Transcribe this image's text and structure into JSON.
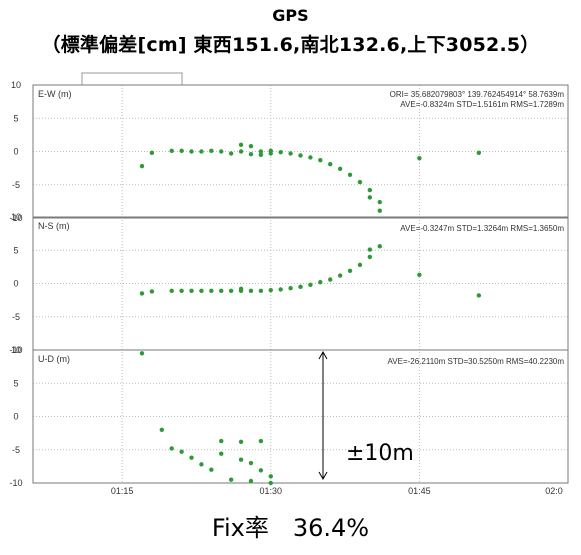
{
  "title_line1": "GPS",
  "title_line2": "（標準偏差[cm] 東西151.6,南北132.6,上下3052.5）",
  "footer": "Fix率　36.4%",
  "colors": {
    "series": "#2e9a36",
    "grid": "#bdbdbd",
    "frame": "#7a7a7a",
    "annotation": "#000000"
  },
  "chart_data": {
    "type": "scatter",
    "x_unit": "time (HH:MM)",
    "xlim": [
      "01:06",
      "02:00"
    ],
    "x_ticks": [
      "01:15",
      "01:30",
      "01:45",
      "02:0"
    ],
    "header_text": "ORI= 35.682079803° 139.762454914° 58.7639m",
    "panels": [
      {
        "label": "E-W (m)",
        "ylim": [
          -10,
          10
        ],
        "y_ticks": [
          10,
          5,
          0,
          -5,
          -10
        ],
        "stats": "AVE=-0.8324m STD=1.5161m RMS=1.7289m",
        "series": [
          {
            "x": [
              "01:17",
              "01:18",
              "01:20",
              "01:21",
              "01:22",
              "01:23",
              "01:24",
              "01:25",
              "01:26",
              "01:27",
              "01:27",
              "01:28",
              "01:28",
              "01:29",
              "01:29",
              "01:30",
              "01:30",
              "01:31",
              "01:32",
              "01:33",
              "01:34",
              "01:35",
              "01:36",
              "01:37",
              "01:38",
              "01:39",
              "01:40",
              "01:40",
              "01:41",
              "01:41",
              "01:45",
              "01:51"
            ],
            "y": [
              -2.2,
              -0.2,
              0.1,
              0.1,
              0.0,
              0.0,
              0.1,
              0.0,
              -0.3,
              1.0,
              0.0,
              -0.4,
              0.8,
              -0.5,
              0.0,
              0.1,
              -0.3,
              -0.1,
              -0.3,
              -0.6,
              -0.9,
              -1.3,
              -1.9,
              -2.6,
              -3.5,
              -4.6,
              -5.8,
              -6.9,
              -7.6,
              -8.9,
              -1.0,
              -0.2
            ]
          }
        ]
      },
      {
        "label": "N-S (m)",
        "ylim": [
          -10,
          10
        ],
        "y_ticks": [
          10,
          5,
          0,
          -5,
          -10
        ],
        "stats": "AVE=-0.3247m STD=1.3264m RMS=1.3650m",
        "series": [
          {
            "x": [
              "01:17",
              "01:18",
              "01:20",
              "01:21",
              "01:22",
              "01:23",
              "01:24",
              "01:25",
              "01:26",
              "01:27",
              "01:27",
              "01:28",
              "01:29",
              "01:30",
              "01:31",
              "01:32",
              "01:33",
              "01:34",
              "01:35",
              "01:36",
              "01:37",
              "01:38",
              "01:39",
              "01:40",
              "01:40",
              "01:41",
              "01:45",
              "01:51"
            ],
            "y": [
              -1.5,
              -1.2,
              -1.1,
              -1.1,
              -1.1,
              -1.1,
              -1.1,
              -1.1,
              -1.1,
              -0.8,
              -1.1,
              -1.1,
              -1.1,
              -1.0,
              -0.9,
              -0.7,
              -0.5,
              -0.2,
              0.2,
              0.6,
              1.2,
              1.9,
              2.8,
              4.0,
              5.1,
              5.6,
              1.3,
              -1.8
            ]
          }
        ]
      },
      {
        "label": "U-D (m)",
        "ylim": [
          -10,
          10
        ],
        "y_ticks": [
          10,
          5,
          0,
          -5,
          -10
        ],
        "stats": "AVE=-26.2110m STD=30.5250m RMS=40.2230m",
        "series": [
          {
            "x": [
              "01:17",
              "01:19",
              "01:20",
              "01:21",
              "01:22",
              "01:23",
              "01:24",
              "01:25",
              "01:25",
              "01:26",
              "01:27",
              "01:27",
              "01:28",
              "01:28",
              "01:29",
              "01:29",
              "01:30",
              "01:30"
            ],
            "y": [
              9.5,
              -2.0,
              -4.8,
              -5.3,
              -6.2,
              -7.2,
              -8.0,
              -5.6,
              -3.7,
              -9.5,
              -3.8,
              -6.5,
              -9.7,
              -7.0,
              -8.1,
              -3.7,
              -10.0,
              -9.0
            ]
          }
        ]
      }
    ],
    "annotation": {
      "text": "±10m",
      "type": "double-arrow"
    }
  }
}
